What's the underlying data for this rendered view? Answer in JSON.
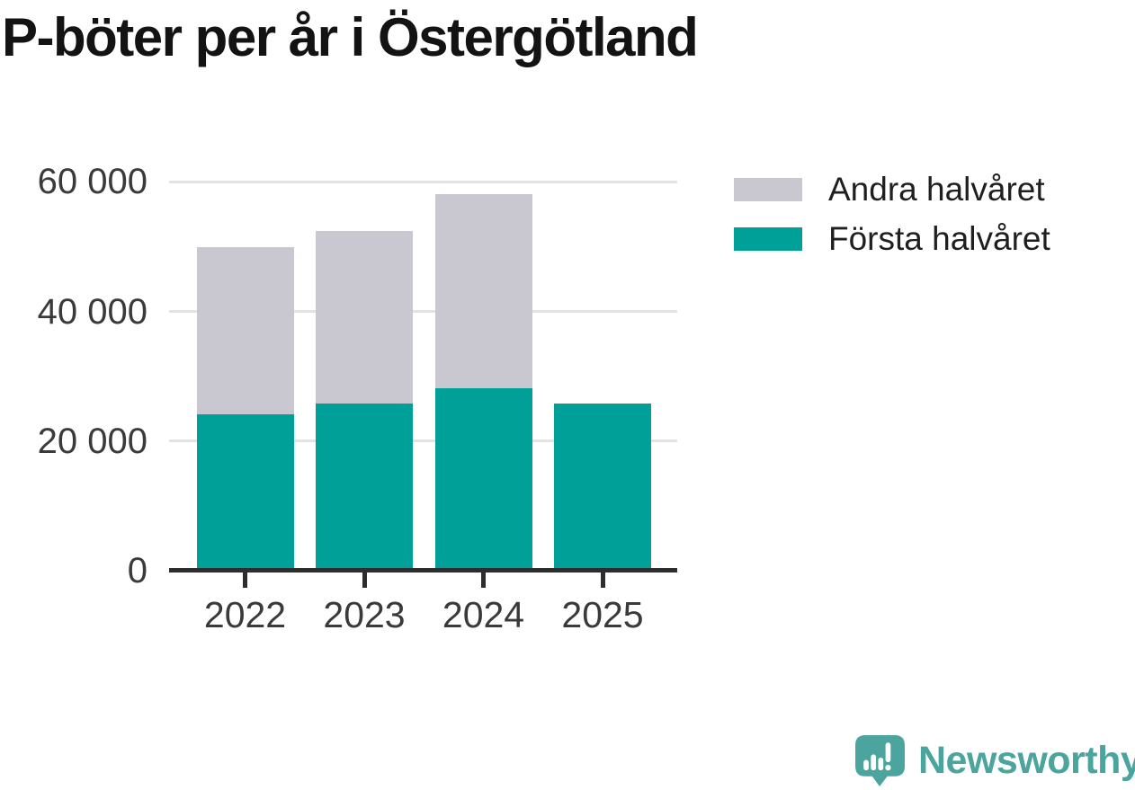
{
  "title": "P-böter per år i Östergötland",
  "chart_data": {
    "type": "bar",
    "stacked": true,
    "title": "P-böter per år i Östergötland",
    "categories": [
      "2022",
      "2023",
      "2024",
      "2025"
    ],
    "series": [
      {
        "name": "Första halvåret",
        "color": "#00a099",
        "values": [
          24100,
          25800,
          28200,
          25800
        ]
      },
      {
        "name": "Andra halvåret",
        "color": "#c9c8d0",
        "values": [
          25900,
          26600,
          29900,
          0
        ]
      }
    ],
    "totals": [
      50000,
      52400,
      58100,
      25800
    ],
    "xlabel": "",
    "ylabel": "",
    "y_ticks": [
      0,
      20000,
      40000,
      60000
    ],
    "y_tick_labels": [
      "0",
      "20 000",
      "40 000",
      "60 000"
    ],
    "ylim": [
      0,
      62000
    ],
    "grid": "horizontal",
    "legend_position": "top-right"
  },
  "legend": {
    "items": [
      {
        "label": "Andra halvåret",
        "series_index": 1
      },
      {
        "label": "Första halvåret",
        "series_index": 0
      }
    ]
  },
  "branding": {
    "logo_text": "Newsworthy",
    "logo_icon": "newsworthy-chart-bubble-icon",
    "logo_color": "#4ba49d"
  }
}
